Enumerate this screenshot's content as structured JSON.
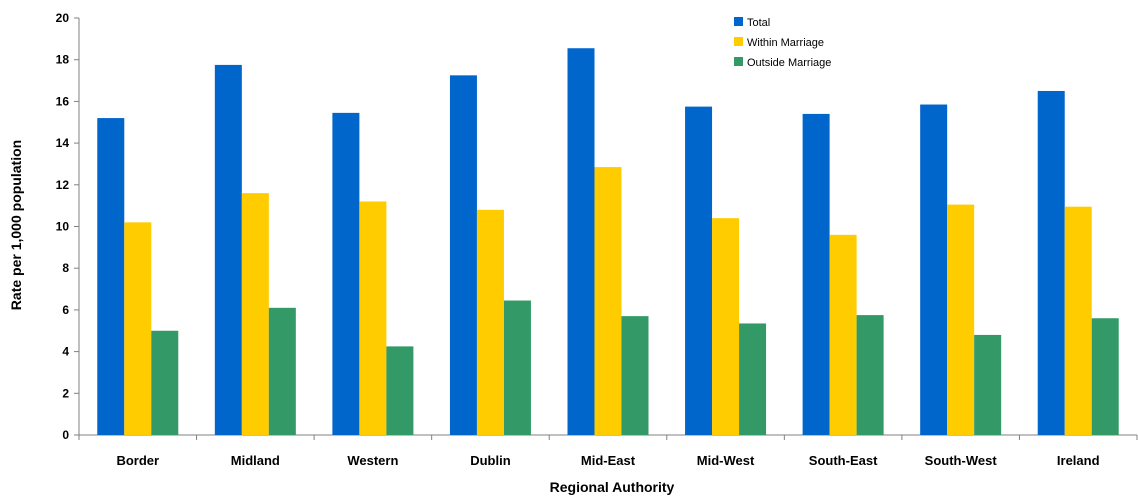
{
  "chart_data": {
    "type": "bar",
    "xlabel": "Regional Authority",
    "ylabel": "Rate per 1,000 population",
    "ylim": [
      0,
      20
    ],
    "yticks": [
      0,
      2,
      4,
      6,
      8,
      10,
      12,
      14,
      16,
      18,
      20
    ],
    "categories": [
      "Border",
      "Midland",
      "Western",
      "Dublin",
      "Mid-East",
      "Mid-West",
      "South-East",
      "South-West",
      "Ireland"
    ],
    "series": [
      {
        "name": "Total",
        "color": "#0066cc",
        "values": [
          15.2,
          17.75,
          15.45,
          17.25,
          18.55,
          15.75,
          15.4,
          15.85,
          16.5
        ]
      },
      {
        "name": "Within Marriage",
        "color": "#ffcc00",
        "values": [
          10.2,
          11.6,
          11.2,
          10.8,
          12.85,
          10.4,
          9.6,
          11.05,
          10.95
        ]
      },
      {
        "name": "Outside Marriage",
        "color": "#339966",
        "values": [
          5.0,
          6.1,
          4.25,
          6.45,
          5.7,
          5.35,
          5.75,
          4.8,
          5.6
        ]
      }
    ],
    "legend_position": "top-right",
    "grid": false
  }
}
